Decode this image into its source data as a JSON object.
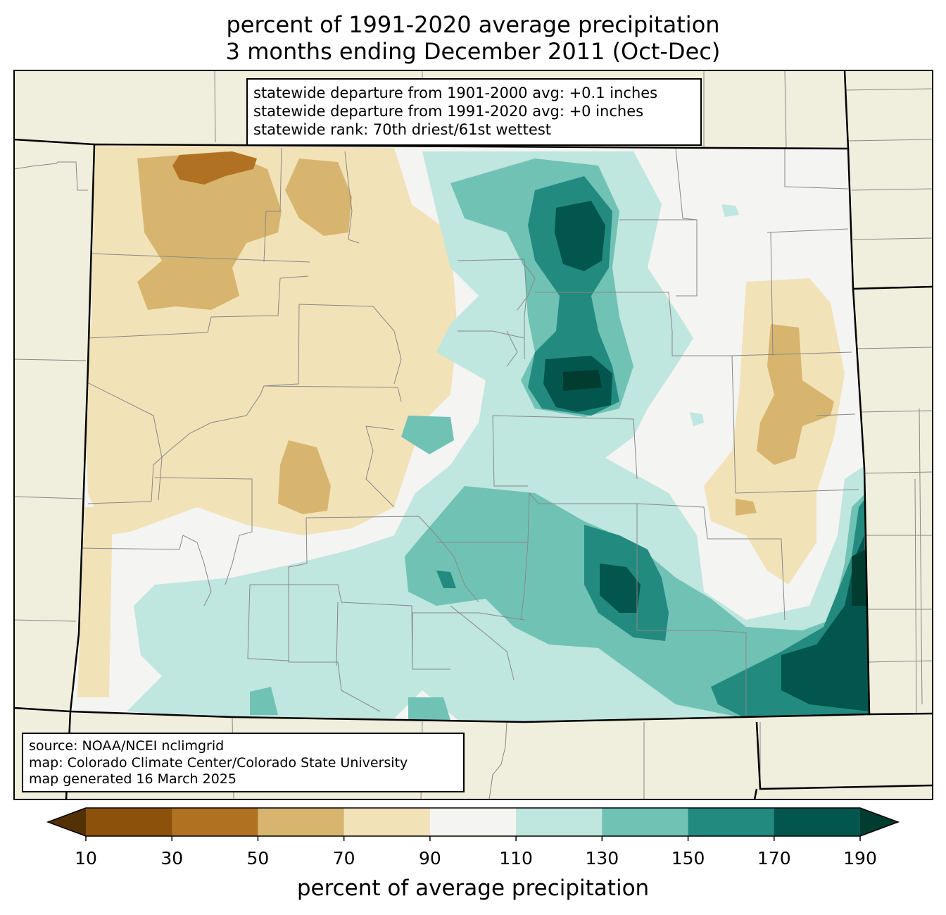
{
  "title": {
    "line1": "percent of 1991-2020 average precipitation",
    "line2": "3 months ending December 2011 (Oct-Dec)"
  },
  "stats": {
    "lines": [
      "statewide departure from 1901-2000 avg: +0.1 inches",
      "statewide departure from 1991-2020 avg: +0 inches",
      "statewide rank: 70th driest/61st wettest"
    ]
  },
  "source": {
    "lines": [
      "source: NOAA/NCEI nclimgrid",
      "map: Colorado Climate Center/Colorado State University",
      "map generated 16 March 2025"
    ]
  },
  "colorbar": {
    "label": "percent of average precipitation",
    "ticks": [
      "10",
      "30",
      "50",
      "70",
      "90",
      "110",
      "130",
      "150",
      "170",
      "190"
    ],
    "under_color": "#543005",
    "over_color": "#003c30",
    "bins": [
      {
        "range": "10-30",
        "color": "#8c510a"
      },
      {
        "range": "30-50",
        "color": "#b07222"
      },
      {
        "range": "50-70",
        "color": "#d8b56e"
      },
      {
        "range": "70-90",
        "color": "#f2e2b8"
      },
      {
        "range": "90-110",
        "color": "#f4f4f2"
      },
      {
        "range": "110-130",
        "color": "#bfe6df"
      },
      {
        "range": "130-150",
        "color": "#70c2b5"
      },
      {
        "range": "150-170",
        "color": "#238a80"
      },
      {
        "range": "170-190",
        "color": "#02564d"
      }
    ]
  },
  "colors": {
    "land_outside": "#f0eedc",
    "county_lines": "#888888",
    "state_lines": "#000000"
  }
}
